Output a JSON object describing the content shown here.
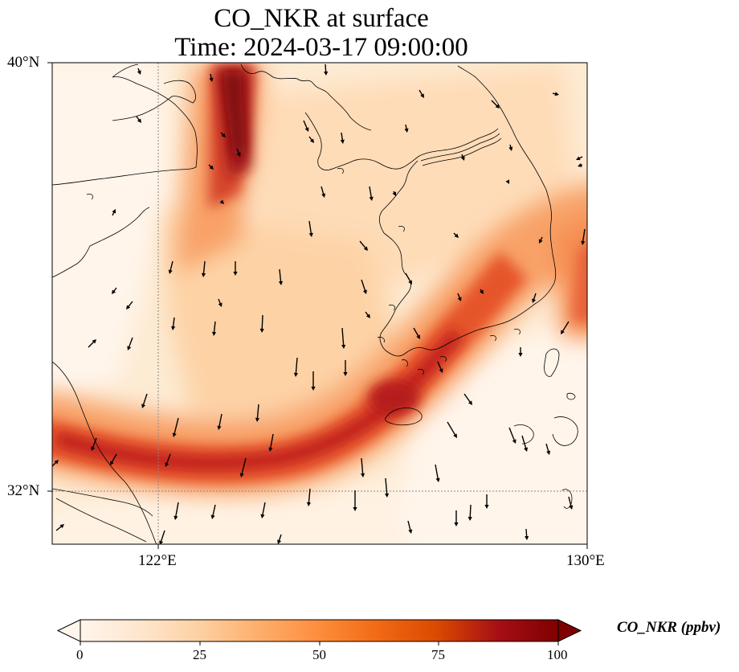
{
  "title": {
    "line1": "CO_NKR at surface",
    "line2": "Time: 2024-03-17 09:00:00"
  },
  "axes": {
    "lon_labels": [
      "122°E",
      "130°E"
    ],
    "lat_labels": [
      "40°N",
      "32°N"
    ],
    "lon_range": [
      120,
      130
    ],
    "lat_range": [
      31,
      40
    ],
    "gridlines": {
      "lon": [
        122
      ],
      "lat": [
        32
      ]
    }
  },
  "colorbar": {
    "label": "CO_NKR (ppbv)",
    "ticks": [
      "0",
      "25",
      "50",
      "75",
      "100"
    ],
    "range": [
      0,
      100
    ],
    "extend": "both",
    "cmap": [
      "#fff5eb",
      "#fee6ce",
      "#fdd0a2",
      "#fdae6b",
      "#fd8d3c",
      "#f16913",
      "#d94801",
      "#a50f15",
      "#7f0000"
    ]
  },
  "colors": {
    "coastline": "#000000",
    "gridline": "#888888",
    "wind_arrow": "#000000"
  }
}
